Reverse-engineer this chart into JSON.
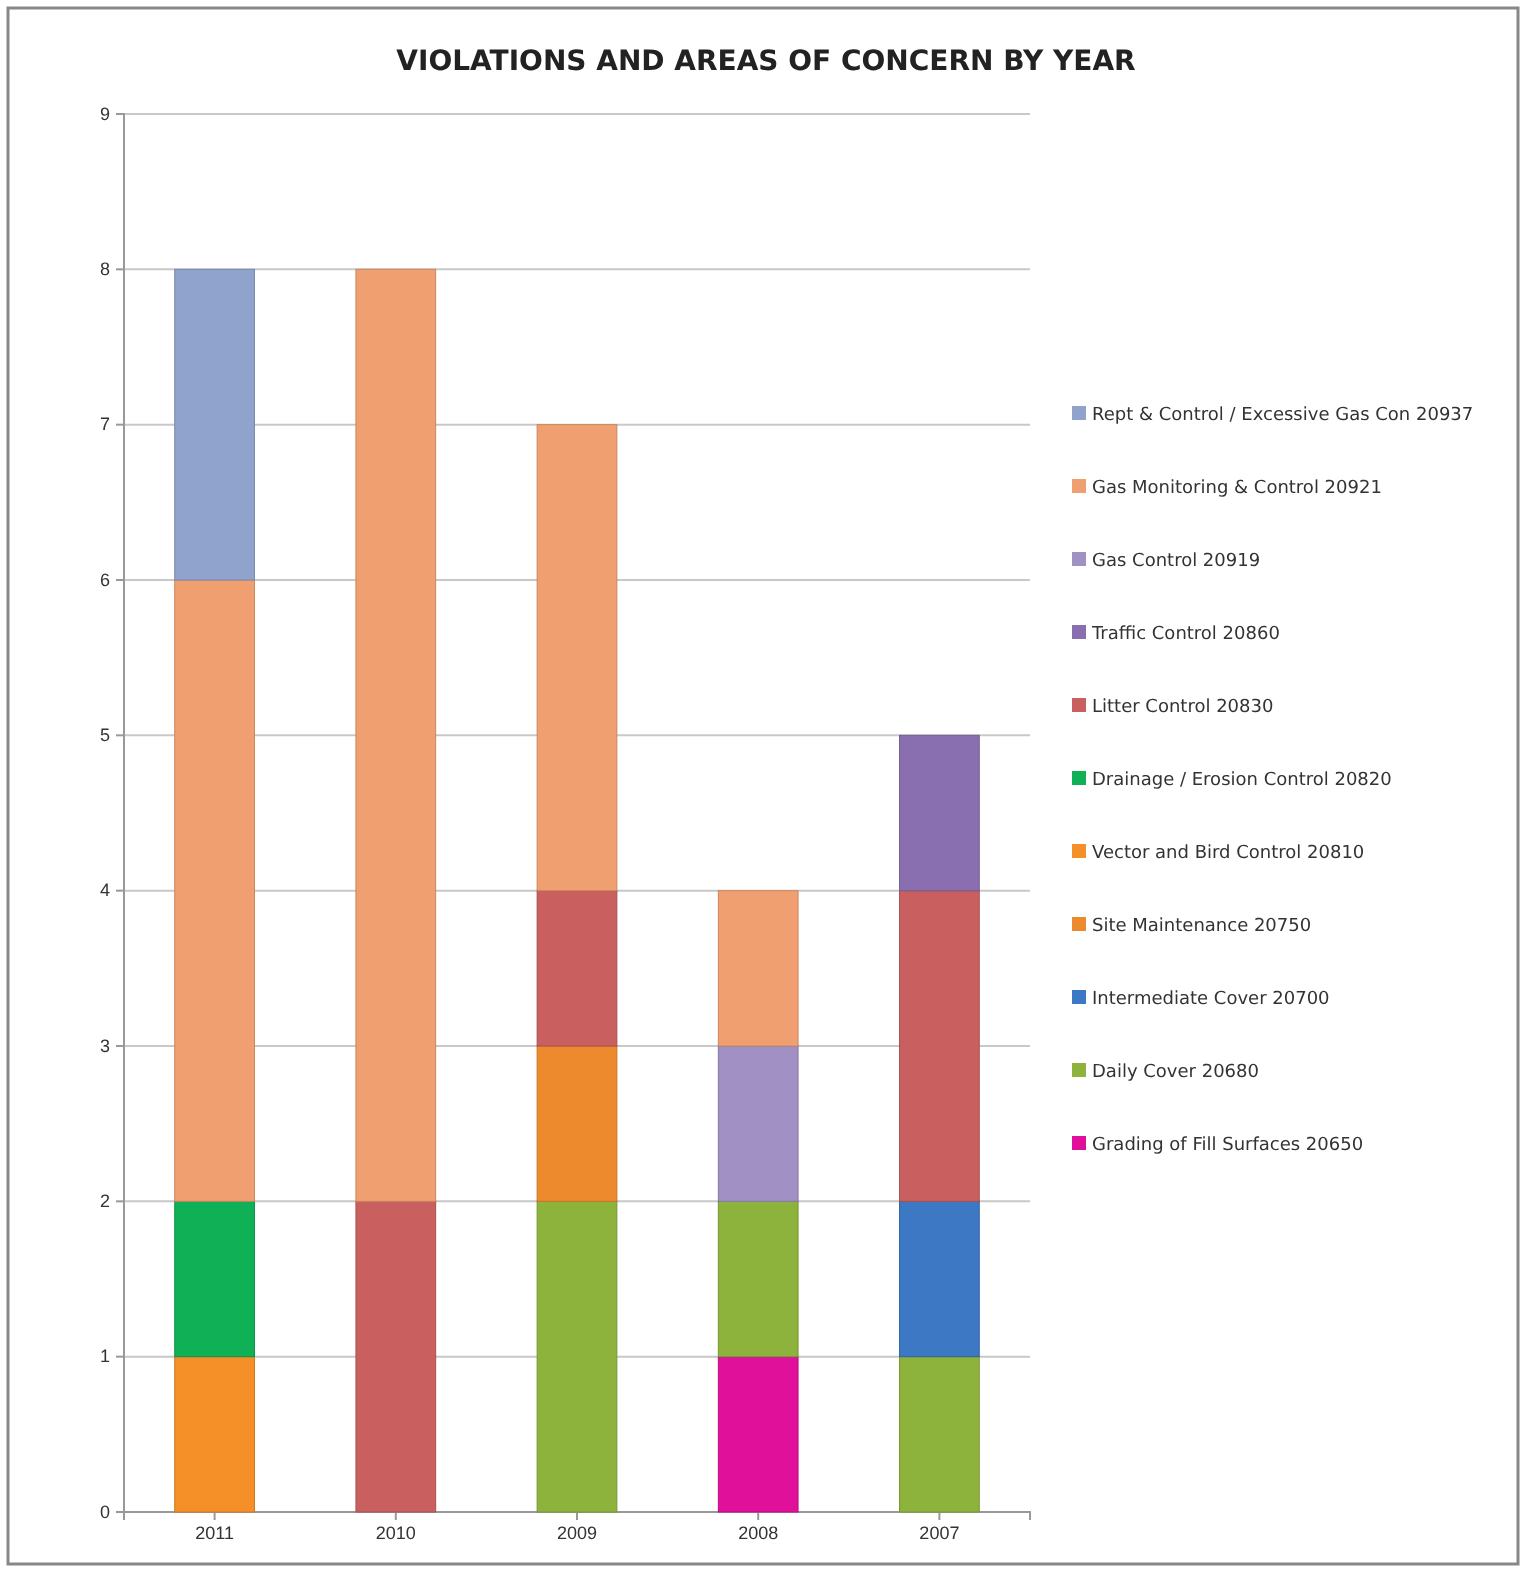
{
  "chart_data": {
    "type": "bar",
    "title": "VIOLATIONS AND AREAS OF CONCERN BY YEAR",
    "categories": [
      "2011",
      "2010",
      "2009",
      "2008",
      "2007"
    ],
    "stacked": true,
    "ylim": [
      0,
      9
    ],
    "yticks": [
      0,
      1,
      2,
      3,
      4,
      5,
      6,
      7,
      8,
      9
    ],
    "grid": "y",
    "legend": "right",
    "series": [
      {
        "name": "Grading of Fill Surfaces 20650",
        "color": "#e0109a",
        "values": [
          0,
          0,
          0,
          1,
          0
        ]
      },
      {
        "name": "Daily Cover 20680",
        "color": "#8db33c",
        "values": [
          0,
          0,
          2,
          1,
          1
        ]
      },
      {
        "name": "Intermediate Cover 20700",
        "color": "#3d78c4",
        "values": [
          0,
          0,
          0,
          0,
          1
        ]
      },
      {
        "name": "Site Maintenance 20750",
        "color": "#ee8a2e",
        "values": [
          0,
          0,
          1,
          0,
          0
        ]
      },
      {
        "name": "Vector and Bird Control 20810",
        "color": "#f59028",
        "values": [
          1,
          0,
          0,
          0,
          0
        ]
      },
      {
        "name": "Drainage / Erosion Control 20820",
        "color": "#10b056",
        "values": [
          1,
          0,
          0,
          0,
          0
        ]
      },
      {
        "name": "Litter Control 20830",
        "color": "#c9605f",
        "values": [
          0,
          2,
          1,
          0,
          2
        ]
      },
      {
        "name": "Traffic Control 20860",
        "color": "#8a6fb0",
        "values": [
          0,
          0,
          0,
          0,
          1
        ]
      },
      {
        "name": "Gas Control 20919",
        "color": "#a090c4",
        "values": [
          0,
          0,
          0,
          1,
          0
        ]
      },
      {
        "name": "Gas Monitoring & Control 20921",
        "color": "#f0a070",
        "values": [
          4,
          6,
          3,
          1,
          0
        ]
      },
      {
        "name": "Rept & Control / Excessive Gas Con 20937",
        "color": "#8fa3cc",
        "values": [
          2,
          0,
          0,
          0,
          0
        ]
      }
    ]
  }
}
